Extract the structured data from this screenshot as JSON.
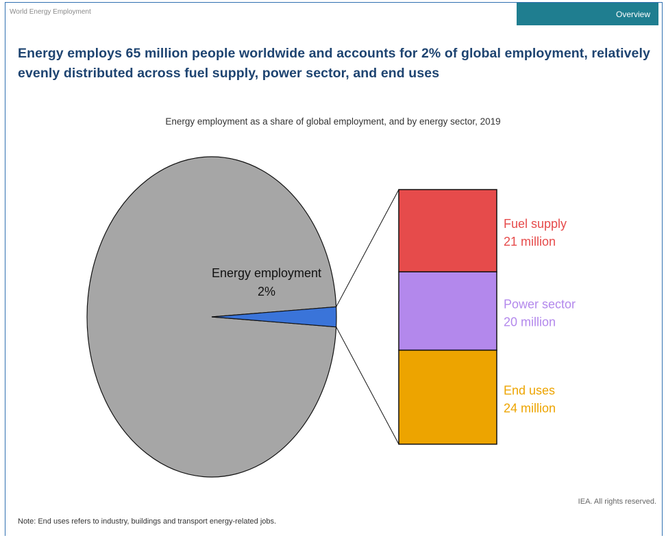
{
  "header": {
    "report_label": "World Energy Employment",
    "tab_label": "Overview"
  },
  "headline": "Energy employs 65 million people worldwide and accounts for 2% of global employment, relatively evenly distributed across fuel supply, power sector, and end uses",
  "colors": {
    "pie_rest": "#a6a6a6",
    "pie_energy": "#3a74d9",
    "fuel_supply": "#e64b4b",
    "power_sector": "#b388ec",
    "end_uses": "#eda400",
    "tab_bg": "#1f7e90",
    "headline": "#1e4471"
  },
  "chart_data": [
    {
      "type": "pie",
      "title": "Energy employment as a share of global employment, and by energy sector, 2019",
      "slices": [
        {
          "label": "",
          "value": 98
        },
        {
          "label": "Energy employment",
          "value": 2,
          "display": "2%"
        }
      ]
    },
    {
      "type": "bar",
      "stacked": true,
      "unit": "million",
      "segments": [
        {
          "name": "Fuel supply",
          "value": 21,
          "display": "21 million"
        },
        {
          "name": "Power sector",
          "value": 20,
          "display": "20 million"
        },
        {
          "name": "End uses",
          "value": 24,
          "display": "24 million"
        }
      ]
    }
  ],
  "footer": {
    "credit": "IEA. All rights reserved.",
    "note": "Note: End uses refers to industry, buildings and transport energy-related jobs."
  }
}
